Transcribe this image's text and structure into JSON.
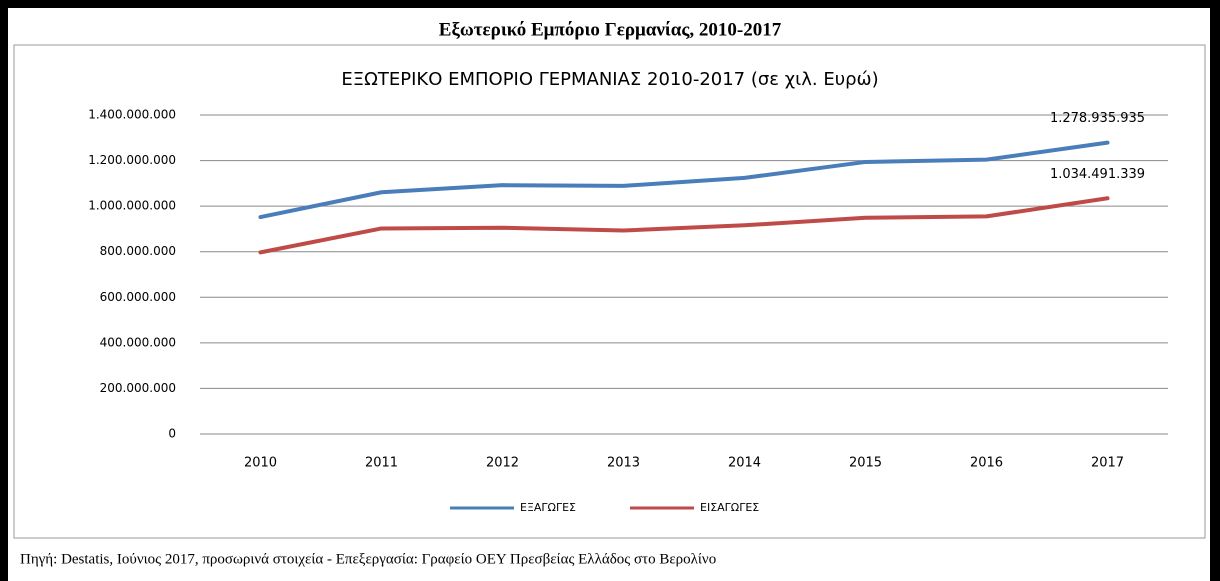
{
  "heading": "Εξωτερικό Εμπόριο Γερμανίας, 2010-2017",
  "source": "Πηγή: Destatis, Ιούνιος 2017, προσωρινά στοιχεία - Επεξεργασία: Γραφείο ΟΕΥ Πρεσβείας Ελλάδος στο Βερολίνο",
  "chart_data": {
    "type": "line",
    "title": "ΕΞΩΤΕΡΙΚΟ ΕΜΠΟΡΙΟ ΓΕΡΜΑΝΙΑΣ 2010-2017 (σε χιλ. Ευρώ)",
    "categories": [
      "2010",
      "2011",
      "2012",
      "2013",
      "2014",
      "2015",
      "2016",
      "2017"
    ],
    "series": [
      {
        "name": "ΕΞΑΓΩΓΕΣ",
        "color": "#4a7ebb",
        "values": [
          952000000,
          1061000000,
          1092000000,
          1089000000,
          1124000000,
          1194000000,
          1204000000,
          1278935935
        ],
        "value_labels": [
          null,
          null,
          null,
          null,
          null,
          null,
          null,
          "1.278.935.935"
        ]
      },
      {
        "name": "ΕΙΣΑΓΩΓΕΣ",
        "color": "#be4b48",
        "values": [
          797000000,
          902000000,
          905000000,
          893000000,
          916000000,
          949000000,
          955000000,
          1034491339
        ],
        "value_labels": [
          null,
          null,
          null,
          null,
          null,
          null,
          null,
          "1.034.491.339"
        ]
      }
    ],
    "ylim": [
      0,
      1400000000
    ],
    "yticks": [
      0,
      {
        "value": 200000000,
        "label": "200.000.000"
      },
      {
        "value": 400000000,
        "label": "400.000.000"
      },
      {
        "value": 600000000,
        "label": "600.000.000"
      },
      {
        "value": 800000000,
        "label": "800.000.000"
      },
      {
        "value": 1000000000,
        "label": "1.000.000.000"
      },
      {
        "value": 1200000000,
        "label": "1.200.000.000"
      },
      {
        "value": 1400000000,
        "label": "1.400.000.000"
      }
    ],
    "grid": true,
    "legend": "bottom"
  }
}
